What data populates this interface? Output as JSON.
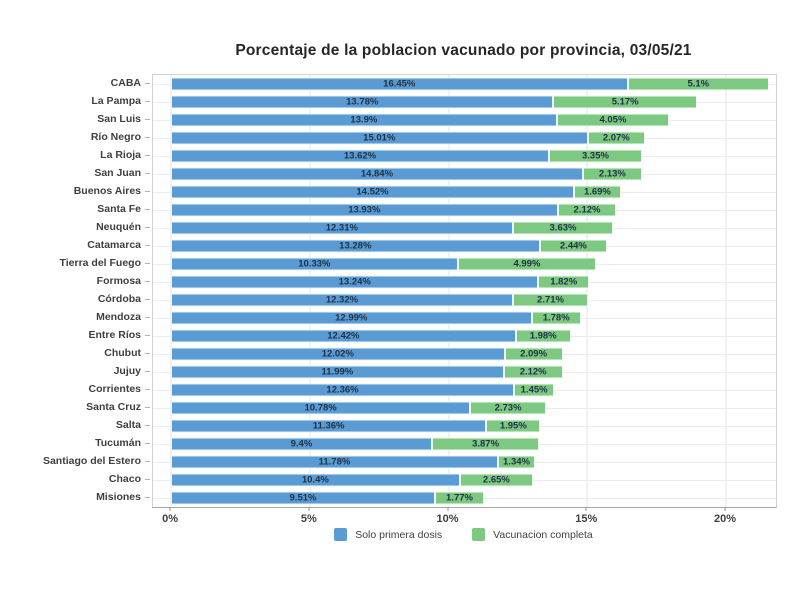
{
  "page": {
    "background": "#ffffff"
  },
  "chart_data": {
    "type": "bar",
    "orientation": "horizontal",
    "stacked": true,
    "title": "Porcentaje de la poblacion vacunado por provincia, 03/05/21",
    "categories": [
      "CABA",
      "La Pampa",
      "San Luis",
      "Río Negro",
      "La Rioja",
      "San Juan",
      "Buenos Aires",
      "Santa Fe",
      "Neuquén",
      "Catamarca",
      "Tierra del Fuego",
      "Formosa",
      "Córdoba",
      "Mendoza",
      "Entre Ríos",
      "Chubut",
      "Jujuy",
      "Corrientes",
      "Santa Cruz",
      "Salta",
      "Tucumán",
      "Santiago del Estero",
      "Chaco",
      "Misiones"
    ],
    "series": [
      {
        "name": "Solo primera dosis",
        "color": "#5a9bd4",
        "values": [
          16.45,
          13.78,
          13.9,
          15.01,
          13.62,
          14.84,
          14.52,
          13.93,
          12.31,
          13.28,
          10.33,
          13.24,
          12.32,
          12.99,
          12.42,
          12.02,
          11.99,
          12.36,
          10.78,
          11.36,
          9.4,
          11.78,
          10.4,
          9.51
        ]
      },
      {
        "name": "Vacunacion completa",
        "color": "#7ec981",
        "values": [
          5.1,
          5.17,
          4.05,
          2.07,
          3.35,
          2.13,
          1.69,
          2.12,
          3.63,
          2.44,
          4.99,
          1.82,
          2.71,
          1.78,
          1.98,
          2.09,
          2.12,
          1.45,
          2.73,
          1.95,
          3.87,
          1.34,
          2.65,
          1.77
        ]
      }
    ],
    "value_label_suffix": "%",
    "xticks": [
      0,
      5,
      10,
      15,
      20
    ],
    "xtick_labels": [
      "0%",
      "5%",
      "10%",
      "15%",
      "20%"
    ],
    "xlim": [
      -0.65,
      21.8
    ],
    "grid": true,
    "legend_position": "bottom"
  }
}
